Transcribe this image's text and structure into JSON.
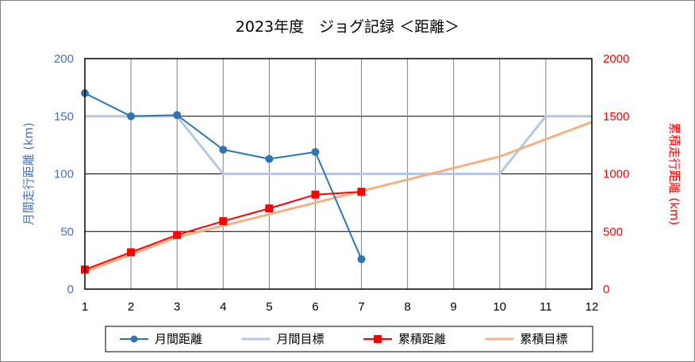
{
  "chart_data": {
    "type": "line",
    "title": "2023年度　ジョグ記録 ＜距離＞",
    "x": [
      1,
      2,
      3,
      4,
      5,
      6,
      7,
      8,
      9,
      10,
      11,
      12
    ],
    "xlim": [
      1,
      12
    ],
    "y_left": {
      "label": "月間走行距離 (km)",
      "lim": [
        0,
        200
      ],
      "ticks": [
        0,
        50,
        100,
        150,
        200
      ],
      "color": "#4472c4"
    },
    "y_right": {
      "label": "累積走行距離 (km)",
      "lim": [
        0,
        2000
      ],
      "ticks": [
        0,
        500,
        1000,
        1500,
        2000
      ],
      "color": "#ff0000"
    },
    "grid": true,
    "legend_position": "bottom",
    "series": [
      {
        "name": "月間距離",
        "axis": "left",
        "color": "#2e75b6",
        "marker": "circle",
        "x": [
          1,
          2,
          3,
          4,
          5,
          6,
          7
        ],
        "values": [
          170,
          150,
          151,
          121,
          113,
          119,
          26
        ]
      },
      {
        "name": "月間目標",
        "axis": "left",
        "color": "#b4c7e7",
        "marker": "none",
        "x": [
          1,
          2,
          3,
          4,
          5,
          6,
          7,
          8,
          9,
          10,
          11,
          12
        ],
        "values": [
          150,
          150,
          150,
          100,
          100,
          100,
          100,
          100,
          100,
          100,
          150,
          150
        ]
      },
      {
        "name": "累積距離",
        "axis": "right",
        "color": "#ff0000",
        "marker": "square",
        "x": [
          1,
          2,
          3,
          4,
          5,
          6,
          7
        ],
        "values": [
          170,
          320,
          470,
          590,
          700,
          820,
          845
        ]
      },
      {
        "name": "累積目標",
        "axis": "right",
        "color": "#f4b183",
        "marker": "none",
        "x": [
          1,
          2,
          3,
          4,
          5,
          6,
          7,
          8,
          9,
          10,
          11,
          12
        ],
        "values": [
          150,
          300,
          450,
          550,
          650,
          750,
          850,
          950,
          1050,
          1150,
          1300,
          1450
        ]
      }
    ]
  }
}
